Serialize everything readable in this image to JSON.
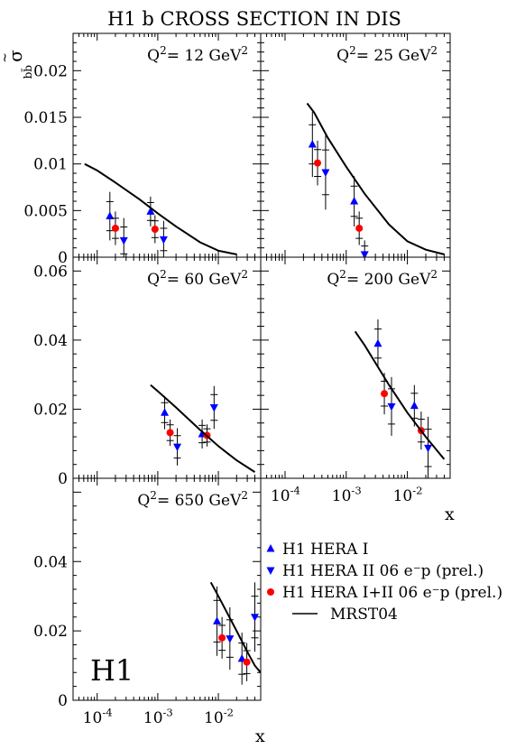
{
  "title": "H1 b  CROSS SECTION IN DIS",
  "ylabel": {
    "base": "σ",
    "sup": "~",
    "sub": "bb̄"
  },
  "xlabel": "x",
  "logo": "H1",
  "colors": {
    "hera1": "#0000ff",
    "hera2": "#0000ff",
    "combined": "#ff0000",
    "theory": "#000000"
  },
  "legend": [
    {
      "key": "hera1",
      "marker": "triangle-up",
      "text": "H1 HERA I"
    },
    {
      "key": "hera2",
      "marker": "triangle-down",
      "text": "H1 HERA II 06 e⁻p (prel.)"
    },
    {
      "key": "combined",
      "marker": "circle",
      "text": "H1 HERA I+II 06 e⁻p (prel.)"
    },
    {
      "key": "theory",
      "marker": "line",
      "text": "MRST04"
    }
  ],
  "chart_data": [
    {
      "type": "scatter",
      "label": "Q² = 12 GeV²",
      "q2_text": "Q",
      "q2_unit": "= 12 GeV",
      "xscale": "log",
      "xlim": [
        4e-05,
        0.05
      ],
      "ylim": [
        0,
        0.024
      ],
      "yticks": [
        0,
        0.005,
        0.01,
        0.015,
        0.02
      ],
      "yticklabels": [
        "0",
        "0.005",
        "0.01",
        "0.015",
        "0.02"
      ],
      "series": [
        {
          "key": "hera1",
          "points": [
            {
              "x": 0.000162,
              "y": 0.0044,
              "err": 0.0026
            },
            {
              "x": 0.00076,
              "y": 0.0049,
              "err": 0.0016
            }
          ]
        },
        {
          "key": "hera2",
          "points": [
            {
              "x": 0.000275,
              "y": 0.0018,
              "err": 0.0024
            },
            {
              "x": 0.00125,
              "y": 0.0019,
              "err": 0.002
            }
          ]
        },
        {
          "key": "combined",
          "points": [
            {
              "x": 0.0002,
              "y": 0.0031,
              "err": 0.0018
            },
            {
              "x": 0.0009,
              "y": 0.003,
              "err": 0.0015
            }
          ]
        },
        {
          "key": "theory",
          "curve": [
            [
              6.2e-05,
              0.01
            ],
            [
              0.0001,
              0.0093
            ],
            [
              0.0002,
              0.008
            ],
            [
              0.0005,
              0.0062
            ],
            [
              0.001,
              0.0047
            ],
            [
              0.002,
              0.0033
            ],
            [
              0.005,
              0.0016
            ],
            [
              0.01,
              0.0007
            ],
            [
              0.02,
              0.0003
            ]
          ]
        }
      ]
    },
    {
      "type": "scatter",
      "label": "Q² = 25 GeV²",
      "q2_text": "Q",
      "q2_unit": "= 25 GeV",
      "xscale": "log",
      "xlim": [
        4e-05,
        0.05
      ],
      "ylim": [
        0,
        0.024
      ],
      "series": [
        {
          "key": "hera1",
          "points": [
            {
              "x": 0.00028,
              "y": 0.0121,
              "err": 0.0035
            },
            {
              "x": 0.00135,
              "y": 0.006,
              "err": 0.0027
            }
          ]
        },
        {
          "key": "hera2",
          "points": [
            {
              "x": 0.00046,
              "y": 0.0091,
              "err": 0.004
            },
            {
              "x": 0.002,
              "y": 0.0003,
              "err": 0.0015
            }
          ]
        },
        {
          "key": "combined",
          "points": [
            {
              "x": 0.00034,
              "y": 0.0101,
              "err": 0.0024
            },
            {
              "x": 0.00163,
              "y": 0.0031,
              "err": 0.0018
            }
          ]
        },
        {
          "key": "theory",
          "curve": [
            [
              0.00023,
              0.0165
            ],
            [
              0.0003,
              0.0155
            ],
            [
              0.0005,
              0.0128
            ],
            [
              0.001,
              0.0097
            ],
            [
              0.002,
              0.0068
            ],
            [
              0.005,
              0.0035
            ],
            [
              0.01,
              0.0017
            ],
            [
              0.02,
              0.0008
            ],
            [
              0.04,
              0.0003
            ]
          ]
        }
      ]
    },
    {
      "type": "scatter",
      "label": "Q² = 60 GeV²",
      "q2_text": "Q",
      "q2_unit": "= 60 GeV",
      "xscale": "log",
      "xlim": [
        4e-05,
        0.05
      ],
      "ylim": [
        0,
        0.064
      ],
      "yticks": [
        0,
        0.02,
        0.04,
        0.06
      ],
      "yticklabels": [
        "0",
        "0.02",
        "0.04",
        "0.06"
      ],
      "series": [
        {
          "key": "hera1",
          "points": [
            {
              "x": 0.0013,
              "y": 0.019,
              "err": 0.0048
            },
            {
              "x": 0.0054,
              "y": 0.0128,
              "err": 0.0042
            }
          ]
        },
        {
          "key": "hera2",
          "points": [
            {
              "x": 0.0021,
              "y": 0.0091,
              "err": 0.0054
            },
            {
              "x": 0.0085,
              "y": 0.0205,
              "err": 0.0062
            }
          ]
        },
        {
          "key": "combined",
          "points": [
            {
              "x": 0.0016,
              "y": 0.0132,
              "err": 0.0038
            },
            {
              "x": 0.0065,
              "y": 0.0124,
              "err": 0.0032
            }
          ]
        },
        {
          "key": "theory",
          "curve": [
            [
              0.00076,
              0.027
            ],
            [
              0.001,
              0.0252
            ],
            [
              0.002,
              0.0205
            ],
            [
              0.005,
              0.014
            ],
            [
              0.01,
              0.0093
            ],
            [
              0.02,
              0.0052
            ],
            [
              0.04,
              0.0018
            ]
          ]
        }
      ]
    },
    {
      "type": "scatter",
      "label": "Q² = 200 GeV²",
      "q2_text": "Q",
      "q2_unit": "= 200 GeV",
      "xscale": "log",
      "xlim": [
        4e-05,
        0.05
      ],
      "ylim": [
        0,
        0.064
      ],
      "series": [
        {
          "key": "hera1",
          "points": [
            {
              "x": 0.0033,
              "y": 0.039,
              "err": 0.007
            },
            {
              "x": 0.013,
              "y": 0.021,
              "err": 0.006
            }
          ]
        },
        {
          "key": "hera2",
          "points": [
            {
              "x": 0.0055,
              "y": 0.0208,
              "err": 0.0085
            },
            {
              "x": 0.0218,
              "y": 0.0088,
              "err": 0.009
            }
          ]
        },
        {
          "key": "combined",
          "points": [
            {
              "x": 0.0042,
              "y": 0.0245,
              "err": 0.006
            },
            {
              "x": 0.0168,
              "y": 0.0138,
              "err": 0.0055
            }
          ]
        },
        {
          "key": "theory",
          "curve": [
            [
              0.0014,
              0.0425
            ],
            [
              0.002,
              0.0385
            ],
            [
              0.005,
              0.027
            ],
            [
              0.01,
              0.019
            ],
            [
              0.02,
              0.012
            ],
            [
              0.04,
              0.0055
            ]
          ]
        }
      ]
    },
    {
      "type": "scatter",
      "label": "Q² = 650 GeV²",
      "q2_text": "Q",
      "q2_unit": "= 650 GeV",
      "xscale": "log",
      "xlim": [
        4e-05,
        0.05
      ],
      "ylim": [
        0,
        0.064
      ],
      "yticks": [
        0,
        0.02,
        0.04
      ],
      "yticklabels": [
        "0",
        "0.02",
        "0.04"
      ],
      "xticks": [
        0.0001,
        0.001,
        0.01
      ],
      "xticklabels": [
        {
          "base": "10",
          "exp": "-4"
        },
        {
          "base": "10",
          "exp": "-3"
        },
        {
          "base": "10",
          "exp": "-2"
        }
      ],
      "series": [
        {
          "key": "hera1",
          "points": [
            {
              "x": 0.0095,
              "y": 0.0228,
              "err": 0.01
            },
            {
              "x": 0.0245,
              "y": 0.012,
              "err": 0.0075
            }
          ]
        },
        {
          "key": "hera2",
          "points": [
            {
              "x": 0.0155,
              "y": 0.0178,
              "err": 0.009
            },
            {
              "x": 0.04,
              "y": 0.024,
              "err": 0.01
            }
          ]
        },
        {
          "key": "combined",
          "points": [
            {
              "x": 0.0115,
              "y": 0.018,
              "err": 0.006
            },
            {
              "x": 0.0295,
              "y": 0.011,
              "err": 0.0055
            }
          ]
        },
        {
          "key": "theory",
          "curve": [
            [
              0.0075,
              0.034
            ],
            [
              0.01,
              0.03
            ],
            [
              0.02,
              0.02
            ],
            [
              0.03,
              0.014
            ],
            [
              0.04,
              0.01
            ],
            [
              0.05,
              0.008
            ]
          ]
        }
      ]
    }
  ],
  "right_xaxis": {
    "xticks": [
      0.0001,
      0.001,
      0.01
    ],
    "xticklabels": [
      {
        "base": "10",
        "exp": "-4"
      },
      {
        "base": "10",
        "exp": "-3"
      },
      {
        "base": "10",
        "exp": "-2"
      }
    ]
  }
}
